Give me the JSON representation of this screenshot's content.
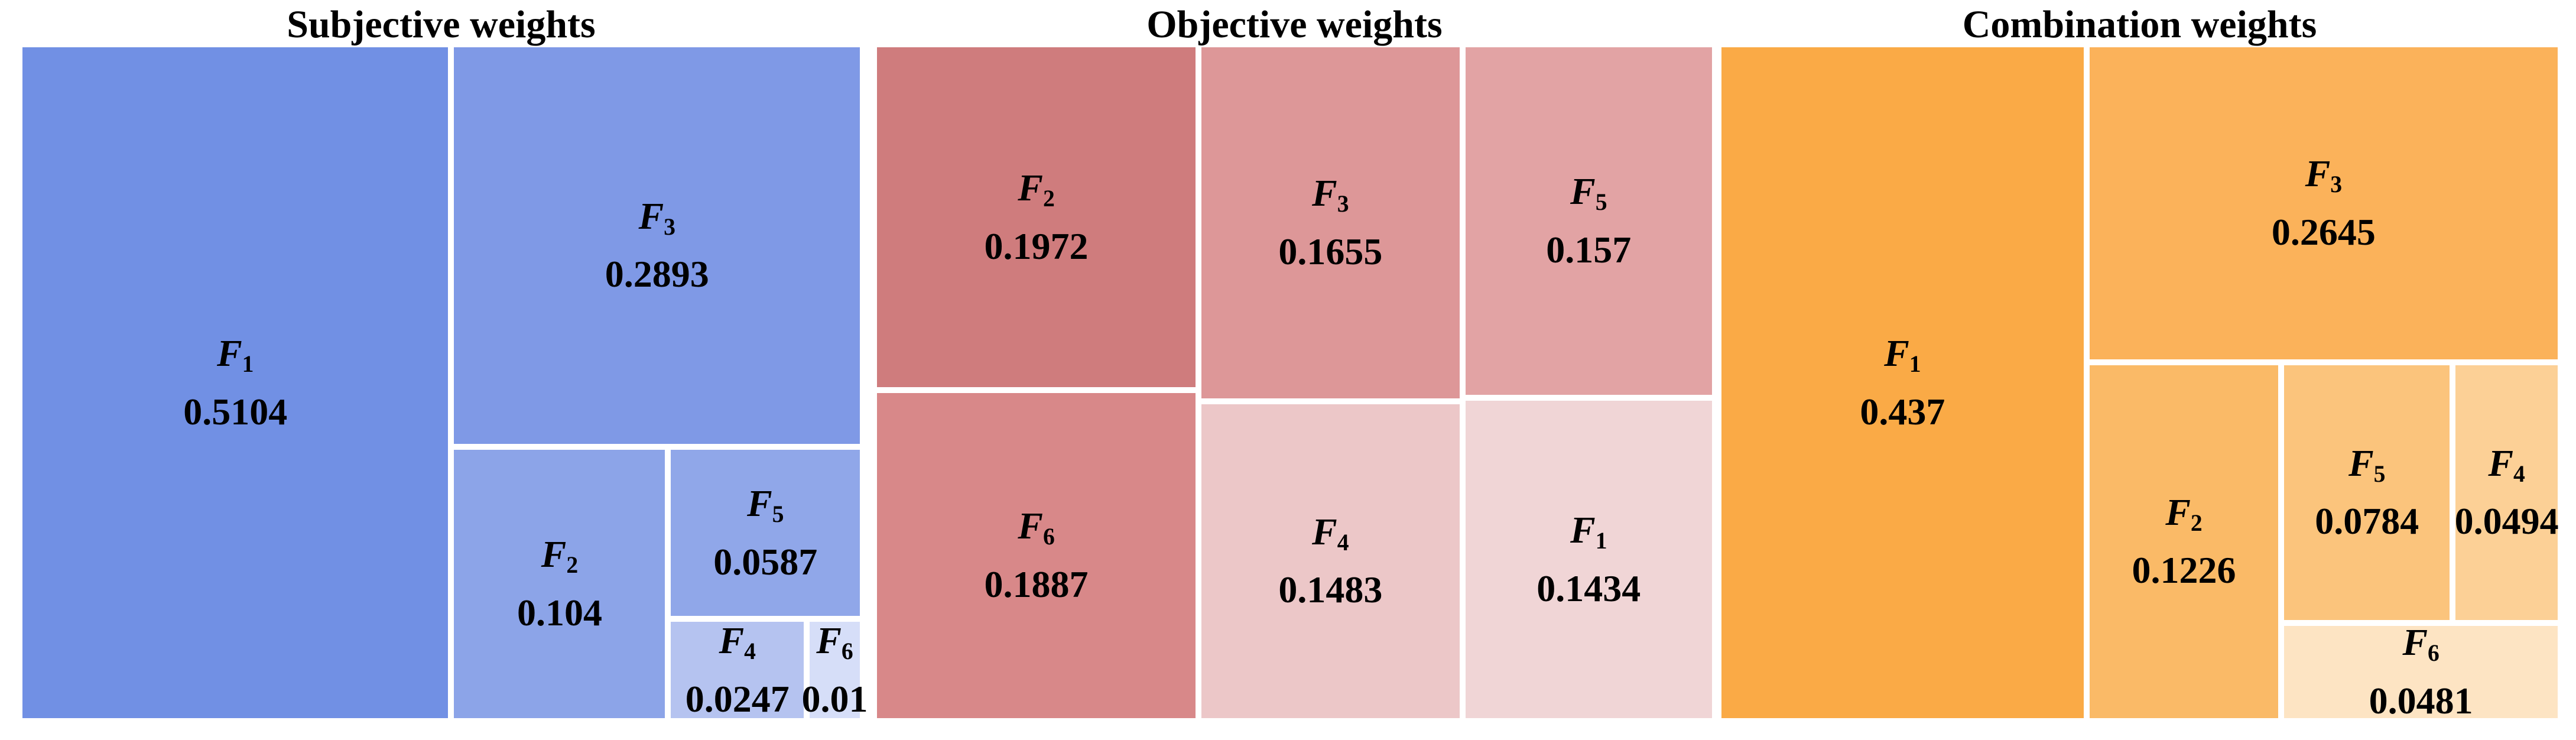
{
  "figure": {
    "background": "#FFFFFF",
    "label_text_color": "#000000",
    "gap_color": "#FFFFFF"
  },
  "chart_data": [
    {
      "type": "treemap",
      "title": "Subjective weights",
      "palette": "blue",
      "items": [
        {
          "factor": "F",
          "sub": "1",
          "label": "F1",
          "value": 0.5104,
          "value_text": "0.5104",
          "color": "#7190E4"
        },
        {
          "factor": "F",
          "sub": "3",
          "label": "F3",
          "value": 0.2893,
          "value_text": "0.2893",
          "color": "#7F99E6"
        },
        {
          "factor": "F",
          "sub": "2",
          "label": "F2",
          "value": 0.104,
          "value_text": "0.104",
          "color": "#8CA4E8"
        },
        {
          "factor": "F",
          "sub": "5",
          "label": "F5",
          "value": 0.0587,
          "value_text": "0.0587",
          "color": "#90A7E9"
        },
        {
          "factor": "F",
          "sub": "4",
          "label": "F4",
          "value": 0.0247,
          "value_text": "0.0247",
          "color": "#B5C3F0"
        },
        {
          "factor": "F",
          "sub": "6",
          "label": "F6",
          "value": 0.01,
          "value_text": "0.01",
          "color": "#D6DEF8"
        }
      ]
    },
    {
      "type": "treemap",
      "title": "Objective weights",
      "palette": "rose",
      "items": [
        {
          "factor": "F",
          "sub": "2",
          "label": "F2",
          "value": 0.1972,
          "value_text": "0.1972",
          "color": "#CF7C7D"
        },
        {
          "factor": "F",
          "sub": "6",
          "label": "F6",
          "value": 0.1887,
          "value_text": "0.1887",
          "color": "#D88889"
        },
        {
          "factor": "F",
          "sub": "3",
          "label": "F3",
          "value": 0.1655,
          "value_text": "0.1655",
          "color": "#DD9798"
        },
        {
          "factor": "F",
          "sub": "5",
          "label": "F5",
          "value": 0.157,
          "value_text": "0.157",
          "color": "#E2A3A4"
        },
        {
          "factor": "F",
          "sub": "4",
          "label": "F4",
          "value": 0.1483,
          "value_text": "0.1483",
          "color": "#ECC7C8"
        },
        {
          "factor": "F",
          "sub": "1",
          "label": "F1",
          "value": 0.1434,
          "value_text": "0.1434",
          "color": "#F0D5D6"
        }
      ]
    },
    {
      "type": "treemap",
      "title": "Combination weights",
      "palette": "orange",
      "items": [
        {
          "factor": "F",
          "sub": "1",
          "label": "F1",
          "value": 0.437,
          "value_text": "0.437",
          "color": "#FAAA46"
        },
        {
          "factor": "F",
          "sub": "3",
          "label": "F3",
          "value": 0.2645,
          "value_text": "0.2645",
          "color": "#FBB25A"
        },
        {
          "factor": "F",
          "sub": "2",
          "label": "F2",
          "value": 0.1226,
          "value_text": "0.1226",
          "color": "#FABA67"
        },
        {
          "factor": "F",
          "sub": "5",
          "label": "F5",
          "value": 0.0784,
          "value_text": "0.0784",
          "color": "#FBC47C"
        },
        {
          "factor": "F",
          "sub": "4",
          "label": "F4",
          "value": 0.0494,
          "value_text": "0.0494",
          "color": "#FCD096"
        },
        {
          "factor": "F",
          "sub": "6",
          "label": "F6",
          "value": 0.0481,
          "value_text": "0.0481",
          "color": "#FDE4C3"
        }
      ]
    }
  ]
}
